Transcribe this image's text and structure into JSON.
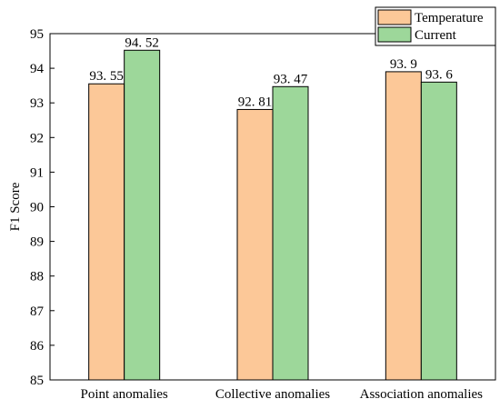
{
  "chart_data": {
    "type": "bar",
    "categories": [
      "Point anomalies",
      "Collective anomalies",
      "Association anomalies"
    ],
    "series": [
      {
        "name": "Temperature",
        "values": [
          93.55,
          92.81,
          93.9
        ],
        "labels": [
          "93. 55",
          "92. 81",
          "93. 9"
        ],
        "color": "#FCC898"
      },
      {
        "name": "Current",
        "values": [
          94.52,
          93.47,
          93.6
        ],
        "labels": [
          "94. 52",
          "93. 47",
          "93. 6"
        ],
        "color": "#9DD79A"
      }
    ],
    "ylabel": "F1 Score",
    "xlabel": "",
    "ylim": [
      85,
      95
    ],
    "yticks": [
      85,
      86,
      87,
      88,
      89,
      90,
      91,
      92,
      93,
      94,
      95
    ],
    "legend_position": "top-right",
    "grid": false
  }
}
